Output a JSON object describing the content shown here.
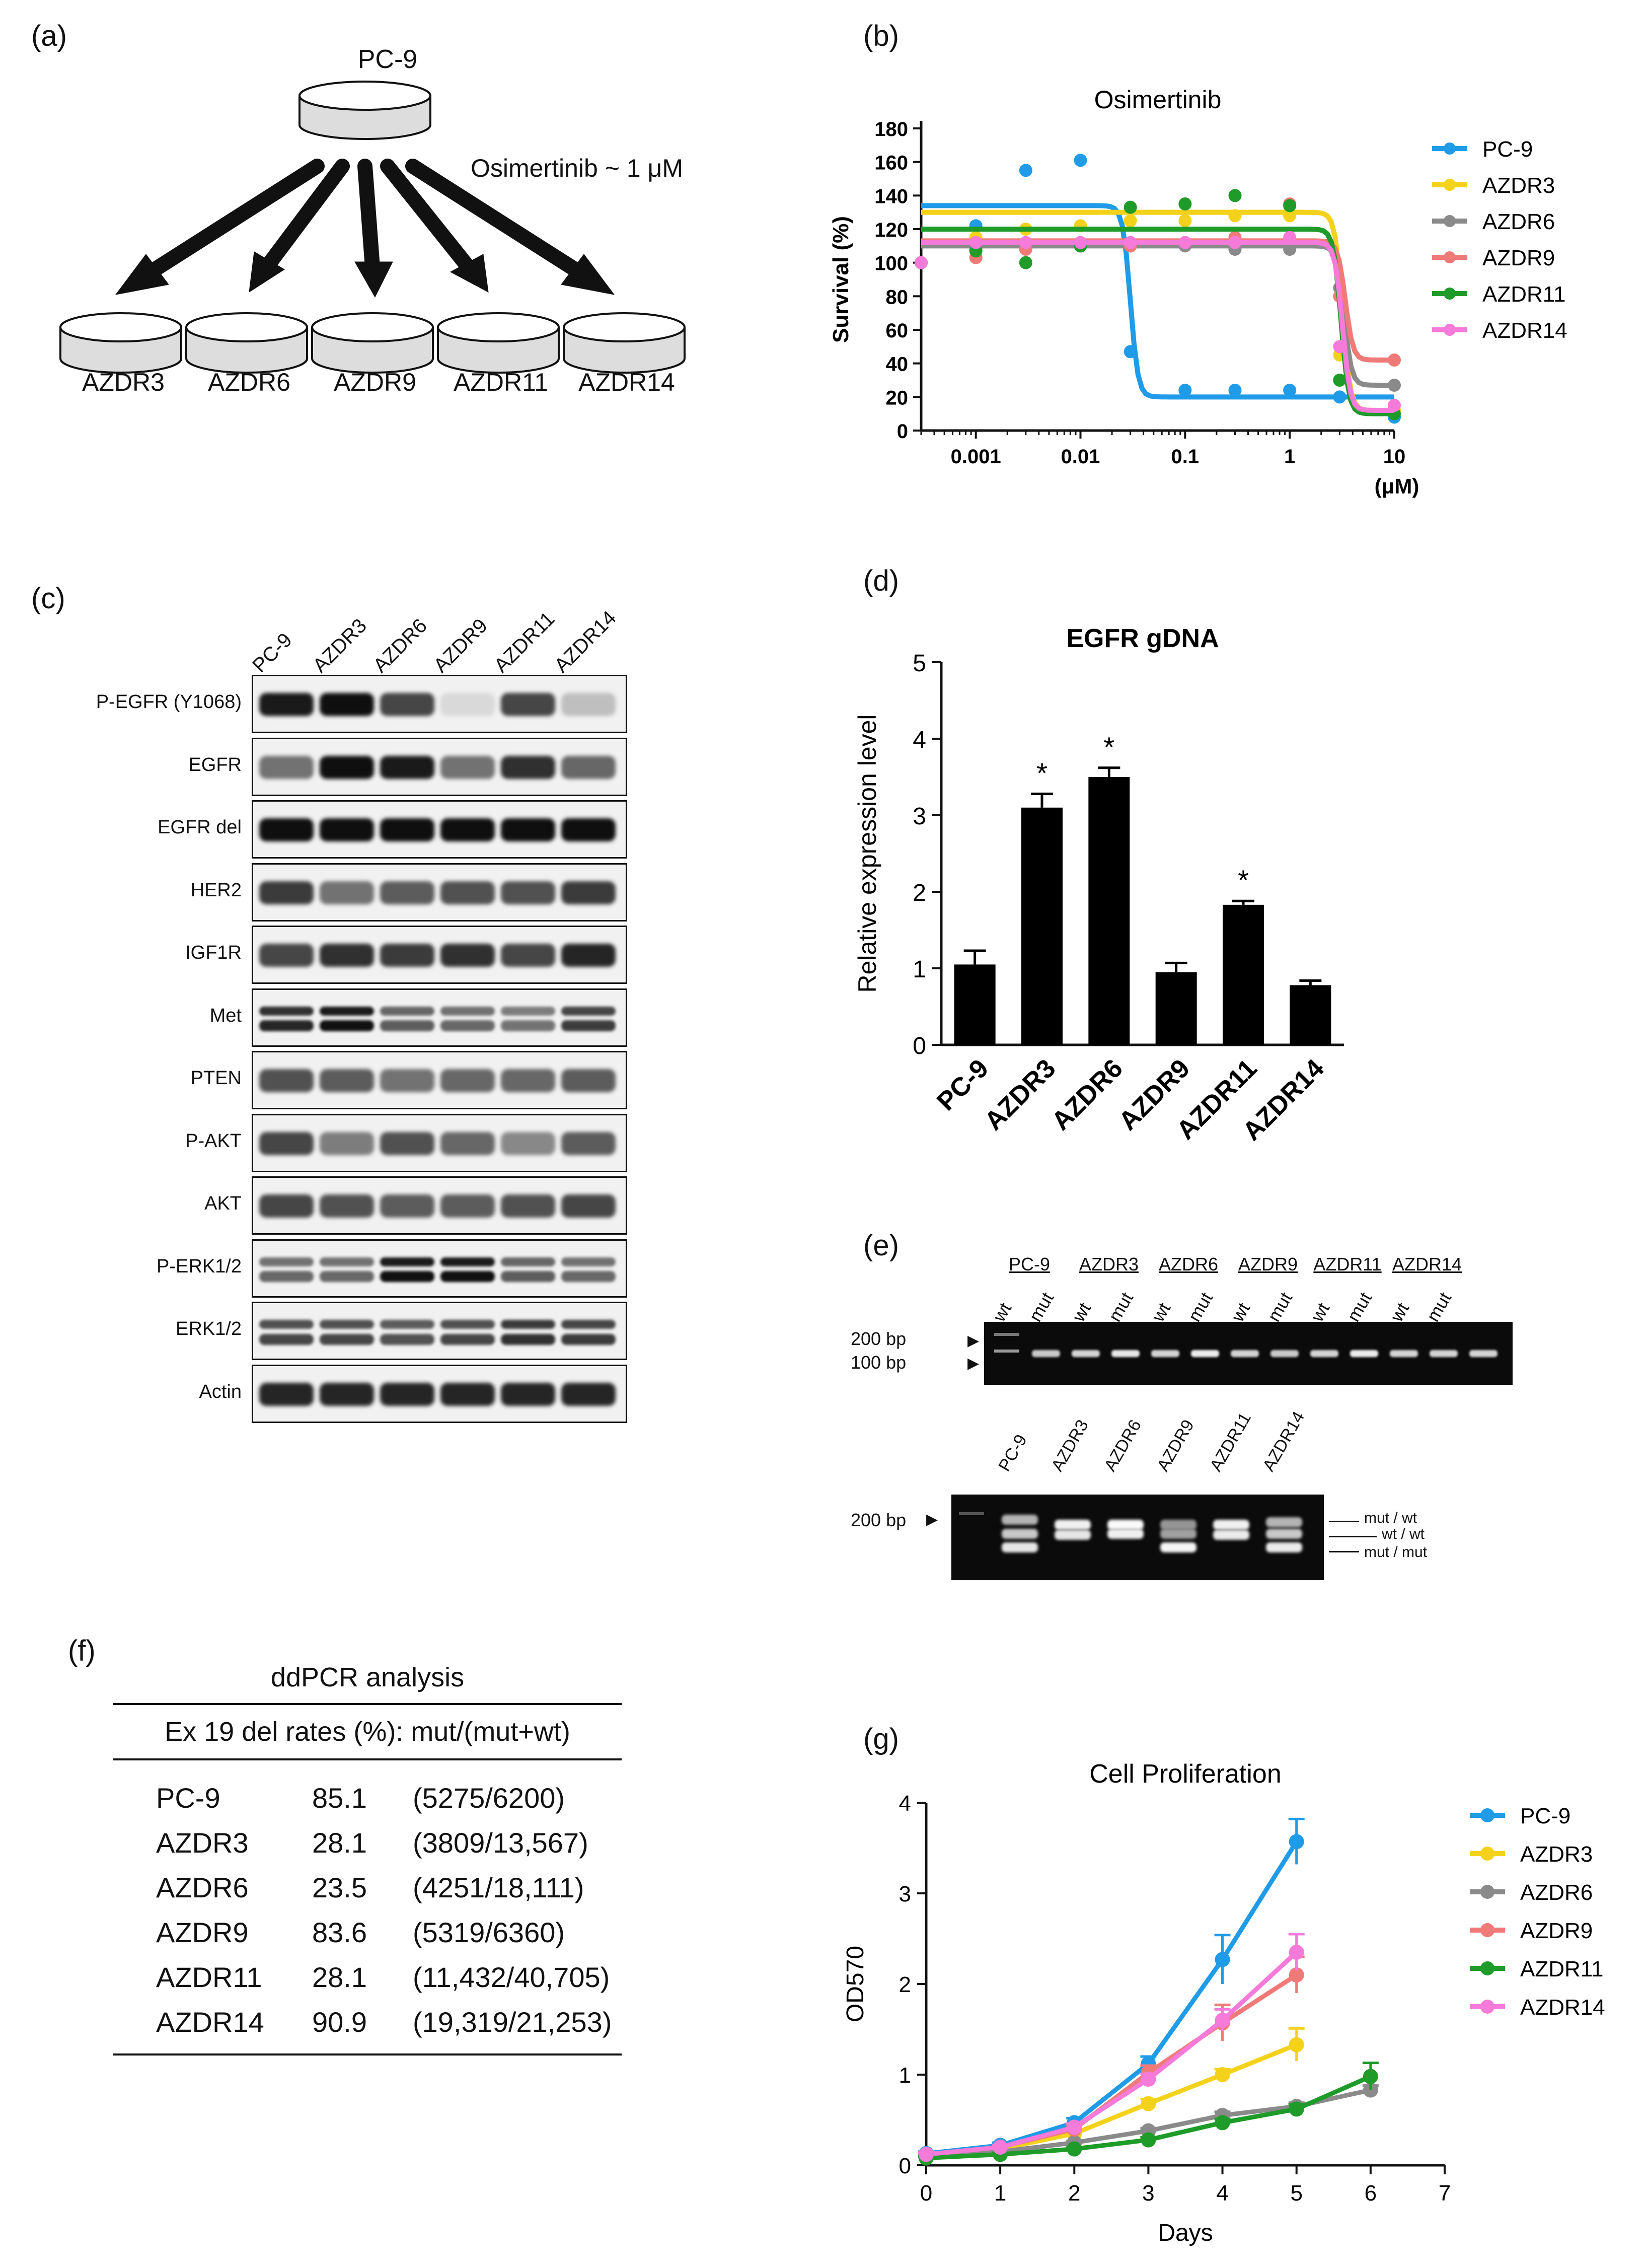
{
  "panels": {
    "a": "(a)",
    "b": "(b)",
    "c": "(c)",
    "d": "(d)",
    "e": "(e)",
    "f": "(f)",
    "g": "(g)"
  },
  "panel_a": {
    "parent": "PC-9",
    "drug": "Osimertinib ~ 1 μM",
    "children": [
      "AZDR3",
      "AZDR6",
      "AZDR9",
      "AZDR11",
      "AZDR14"
    ]
  },
  "panel_c": {
    "lanes": [
      "PC-9",
      "AZDR3",
      "AZDR6",
      "AZDR9",
      "AZDR11",
      "AZDR14"
    ],
    "blots": [
      "P-EGFR (Y1068)",
      "EGFR",
      "EGFR del",
      "HER2",
      "IGF1R",
      "Met",
      "PTEN",
      "P-AKT",
      "AKT",
      "P-ERK1/2",
      "ERK1/2",
      "Actin"
    ]
  },
  "panel_e": {
    "groups": [
      "PC-9",
      "AZDR3",
      "AZDR6",
      "AZDR9",
      "AZDR11",
      "AZDR14"
    ],
    "lane_pair": [
      "wt",
      "mut"
    ],
    "marker_200": "200 bp",
    "marker_100": "100 bp",
    "gel2_lanes": [
      "PC-9",
      "AZDR3",
      "AZDR6",
      "AZDR9",
      "AZDR11",
      "AZDR14"
    ],
    "gel2_marker": "200 bp",
    "gel2_bands": [
      "mut / wt",
      "wt / wt",
      "mut / mut"
    ]
  },
  "panel_f": {
    "title": "ddPCR analysis",
    "header": "Ex 19 del rates (%): mut/(mut+wt)",
    "rows": [
      {
        "name": "PC-9",
        "rate": "85.1",
        "ratio": "(5275/6200)"
      },
      {
        "name": "AZDR3",
        "rate": "28.1",
        "ratio": "(3809/13,567)"
      },
      {
        "name": "AZDR6",
        "rate": "23.5",
        "ratio": "(4251/18,111)"
      },
      {
        "name": "AZDR9",
        "rate": "83.6",
        "ratio": "(5319/6360)"
      },
      {
        "name": "AZDR11",
        "rate": "28.1",
        "ratio": "(11,432/40,705)"
      },
      {
        "name": "AZDR14",
        "rate": "90.9",
        "ratio": "(19,319/21,253)"
      }
    ]
  },
  "colors": {
    "PC-9": "#1f9be8",
    "AZDR3": "#f4d21c",
    "AZDR6": "#8a8a8a",
    "AZDR9": "#f07a78",
    "AZDR11": "#1e9b28",
    "AZDR14": "#f57ad9"
  },
  "chart_data": [
    {
      "panel": "b",
      "type": "line",
      "title": "Osimertinib",
      "ylabel": "Survival (%)",
      "xunit": "(μM)",
      "xscale": "log",
      "xlim": [
        0.0003,
        10
      ],
      "ylim": [
        0,
        180
      ],
      "xticks": [
        "0.001",
        "0.01",
        "0.1",
        "1",
        "10"
      ],
      "yticks": [
        "0",
        "20",
        "40",
        "60",
        "80",
        "100",
        "120",
        "140",
        "160",
        "180"
      ],
      "x": [
        0.0003,
        0.001,
        0.003,
        0.01,
        0.03,
        0.1,
        0.3,
        1,
        3,
        10
      ],
      "series": [
        {
          "name": "PC-9",
          "values": [
            100,
            122,
            155,
            161,
            47,
            24,
            24,
            24,
            20,
            8
          ],
          "top": 134,
          "bottom": 20,
          "ic50": 0.03
        },
        {
          "name": "AZDR3",
          "values": [
            100,
            115,
            120,
            122,
            125,
            125,
            128,
            128,
            45,
            12
          ],
          "top": 130,
          "bottom": 12,
          "ic50": 3.2
        },
        {
          "name": "AZDR6",
          "values": [
            100,
            108,
            110,
            110,
            110,
            110,
            108,
            108,
            85,
            27
          ],
          "top": 110,
          "bottom": 27,
          "ic50": 3.3
        },
        {
          "name": "AZDR9",
          "values": [
            100,
            103,
            108,
            110,
            110,
            112,
            115,
            135,
            80,
            42
          ],
          "top": 113,
          "bottom": 42,
          "ic50": 3.4
        },
        {
          "name": "AZDR11",
          "values": [
            100,
            107,
            100,
            110,
            133,
            135,
            140,
            134,
            30,
            10
          ],
          "top": 120,
          "bottom": 10,
          "ic50": 3.1
        },
        {
          "name": "AZDR14",
          "values": [
            100,
            112,
            112,
            112,
            112,
            112,
            112,
            115,
            50,
            15
          ],
          "top": 112,
          "bottom": 12,
          "ic50": 3.2
        }
      ]
    },
    {
      "panel": "d",
      "type": "bar",
      "title": "EGFR gDNA",
      "ylabel": "Relative expression level",
      "ylim": [
        0,
        5
      ],
      "yticks": [
        "0",
        "1",
        "2",
        "3",
        "4",
        "5"
      ],
      "categories": [
        "PC-9",
        "AZDR3",
        "AZDR6",
        "AZDR9",
        "AZDR11",
        "AZDR14"
      ],
      "values": [
        1.05,
        3.1,
        3.5,
        0.95,
        1.83,
        0.78
      ],
      "errors": [
        0.18,
        0.18,
        0.12,
        0.12,
        0.05,
        0.06
      ],
      "significance": [
        "",
        "*",
        "*",
        "",
        "*",
        ""
      ]
    },
    {
      "panel": "g",
      "type": "line",
      "title": "Cell Proliferation",
      "xlabel": "Days",
      "ylabel": "OD570",
      "xlim": [
        0,
        7
      ],
      "ylim": [
        0,
        4
      ],
      "xticks": [
        "0",
        "1",
        "2",
        "3",
        "4",
        "5",
        "6",
        "7"
      ],
      "yticks": [
        "0",
        "1",
        "2",
        "3",
        "4"
      ],
      "series": [
        {
          "name": "PC-9",
          "x": [
            0,
            1,
            2,
            3,
            4,
            5
          ],
          "values": [
            0.13,
            0.22,
            0.47,
            1.12,
            2.27,
            3.57
          ],
          "errors": [
            0.02,
            0.03,
            0.05,
            0.08,
            0.27,
            0.25
          ]
        },
        {
          "name": "AZDR3",
          "x": [
            0,
            1,
            2,
            3,
            4,
            5
          ],
          "values": [
            0.12,
            0.18,
            0.35,
            0.68,
            1.0,
            1.33
          ],
          "errors": [
            0.02,
            0.02,
            0.03,
            0.05,
            0.06,
            0.18
          ]
        },
        {
          "name": "AZDR6",
          "x": [
            0,
            1,
            2,
            3,
            4,
            5,
            6
          ],
          "values": [
            0.1,
            0.15,
            0.25,
            0.38,
            0.55,
            0.65,
            0.83
          ],
          "errors": [
            0.01,
            0.02,
            0.02,
            0.03,
            0.04,
            0.04,
            0.05
          ]
        },
        {
          "name": "AZDR9",
          "x": [
            0,
            1,
            2,
            3,
            4,
            5
          ],
          "values": [
            0.12,
            0.2,
            0.4,
            1.02,
            1.57,
            2.1
          ],
          "errors": [
            0.02,
            0.02,
            0.04,
            0.08,
            0.2,
            0.2
          ]
        },
        {
          "name": "AZDR11",
          "x": [
            0,
            1,
            2,
            3,
            4,
            5,
            6
          ],
          "values": [
            0.08,
            0.12,
            0.18,
            0.28,
            0.47,
            0.62,
            0.98
          ],
          "errors": [
            0.01,
            0.01,
            0.02,
            0.03,
            0.04,
            0.05,
            0.15
          ]
        },
        {
          "name": "AZDR14",
          "x": [
            0,
            1,
            2,
            3,
            4,
            5
          ],
          "values": [
            0.12,
            0.2,
            0.42,
            0.95,
            1.6,
            2.35
          ],
          "errors": [
            0.02,
            0.02,
            0.04,
            0.06,
            0.12,
            0.2
          ]
        }
      ]
    }
  ]
}
